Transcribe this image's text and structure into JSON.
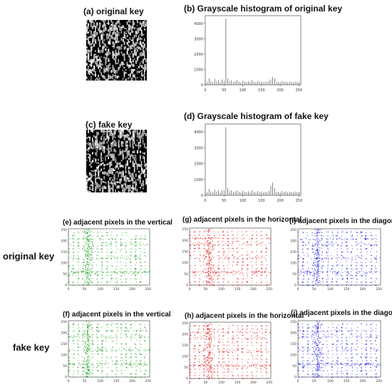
{
  "colors": {
    "vertical": "#1f9e1f",
    "horizontal": "#e11d1d",
    "diagonal": "#2222dd",
    "histogram": "#666666",
    "axis": "#333333"
  },
  "keys": {
    "original": {
      "image_title": "(a)  original key",
      "hist_title": "(b)  Grayscale histogram of original key",
      "row_label": "original key"
    },
    "fake": {
      "image_title": "(c)  fake key",
      "hist_title": "(d)  Grayscale histogram of fake key",
      "row_label": "fake key"
    }
  },
  "scatter_titles": {
    "e": "(e) adjacent pixels in the vertical",
    "g": "(g) adjacent pixels in the horizontal",
    "i": "(i) adjacent pixels in the diagonal",
    "f": "(f) adjacent pixels in the vertical",
    "h": "(h) adjacent pixels in the horizontal",
    "j": "(j) adjacent pixels in the diagonal"
  },
  "chart_data": [
    {
      "id": "hist-original",
      "type": "bar",
      "title": "(b)  Grayscale histogram of original key",
      "xlim": [
        0,
        255
      ],
      "ylim": [
        0,
        4500
      ],
      "xticks": [
        0,
        50,
        100,
        150,
        200,
        250
      ],
      "yticks": [
        0,
        1000,
        2000,
        3000,
        4000
      ],
      "x": [
        0,
        5,
        10,
        15,
        20,
        25,
        30,
        35,
        40,
        45,
        50,
        55,
        60,
        65,
        70,
        75,
        80,
        85,
        90,
        95,
        100,
        105,
        110,
        115,
        120,
        125,
        130,
        135,
        140,
        145,
        150,
        155,
        160,
        165,
        170,
        175,
        180,
        185,
        190,
        195,
        200,
        205,
        210,
        215,
        220,
        225,
        230,
        235,
        240,
        245,
        250,
        255
      ],
      "values": [
        300,
        180,
        420,
        250,
        160,
        380,
        220,
        300,
        160,
        350,
        280,
        4300,
        420,
        250,
        300,
        180,
        230,
        300,
        200,
        160,
        260,
        200,
        180,
        230,
        160,
        300,
        200,
        160,
        250,
        180,
        220,
        160,
        200,
        180,
        250,
        350,
        500,
        420,
        180,
        200,
        160,
        250,
        180,
        220,
        160,
        200,
        180,
        160,
        220,
        180,
        200,
        160
      ]
    },
    {
      "id": "hist-fake",
      "type": "bar",
      "title": "(d)  Grayscale histogram of fake key",
      "xlim": [
        0,
        255
      ],
      "ylim": [
        0,
        4500
      ],
      "xticks": [
        0,
        50,
        100,
        150,
        200,
        250
      ],
      "yticks": [
        0,
        1000,
        2000,
        3000,
        4000
      ],
      "x": [
        0,
        5,
        10,
        15,
        20,
        25,
        30,
        35,
        40,
        45,
        50,
        55,
        60,
        65,
        70,
        75,
        80,
        85,
        90,
        95,
        100,
        105,
        110,
        115,
        120,
        125,
        130,
        135,
        140,
        145,
        150,
        155,
        160,
        165,
        170,
        175,
        180,
        185,
        190,
        195,
        200,
        205,
        210,
        215,
        220,
        225,
        230,
        235,
        240,
        245,
        250,
        255
      ],
      "values": [
        320,
        200,
        400,
        260,
        180,
        360,
        240,
        320,
        180,
        330,
        300,
        4300,
        440,
        260,
        320,
        200,
        240,
        320,
        220,
        180,
        280,
        220,
        200,
        250,
        180,
        320,
        220,
        180,
        270,
        200,
        240,
        180,
        220,
        200,
        270,
        600,
        800,
        450,
        200,
        220,
        180,
        270,
        200,
        240,
        180,
        220,
        200,
        180,
        240,
        200,
        220,
        180
      ]
    },
    {
      "id": "scatter-grid",
      "type": "scatter",
      "xlim": [
        0,
        255
      ],
      "ylim": [
        0,
        255
      ],
      "xticks": [
        0,
        50,
        100,
        150,
        200,
        250
      ],
      "yticks": [
        0,
        50,
        100,
        150,
        200,
        250
      ],
      "panels": [
        "e",
        "g",
        "i",
        "f",
        "h",
        "j"
      ]
    }
  ]
}
